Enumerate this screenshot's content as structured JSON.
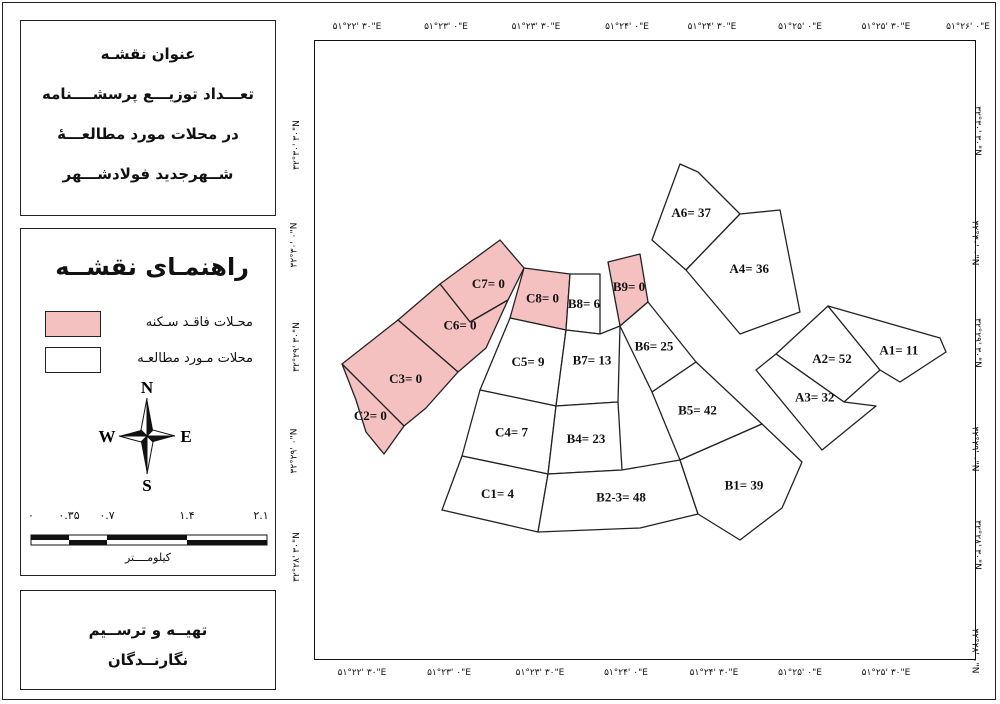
{
  "title_box": {
    "lines": [
      "عنوان نقشـه",
      "تعـــداد توزیـــع پرسشــــنامه",
      "در محلات مورد مطالعـــۀ",
      "شــهرجدید فولادشـــهر"
    ]
  },
  "legend": {
    "heading": "راهنمـای نقشــه",
    "items": [
      {
        "label": "محـلات فاقـد سـکنه",
        "color": "#f4c0c0"
      },
      {
        "label": "محلات مـورد مطالعـه",
        "color": "#ffffff"
      }
    ],
    "north_arrow": {
      "n": "N",
      "s": "S",
      "e": "E",
      "w": "W"
    },
    "scale_bar": {
      "labels": [
        "۰",
        "۰.۳۵",
        "۰.۷",
        "۱.۴",
        "۲.۱"
      ],
      "unit": "کیلومــــتر"
    }
  },
  "credit_box": {
    "lines": [
      "تهیــه و ترســیم",
      "نگارنــدگان"
    ]
  },
  "map": {
    "top_ticks": [
      "۵۱°۲۲' ۳۰\"E",
      "۵۱°۲۳' ۰\"E",
      "۵۱°۲۳' ۳۰\"E",
      "۵۱°۲۴' ۰\"E",
      "۵۱°۲۴' ۳۰\"E",
      "۵۱°۲۵' ۰\"E",
      "۵۱°۲۵' ۳۰\"E",
      "۵۱°۲۶' ۰\"E"
    ],
    "bottom_ticks": [
      "۵۱°۲۲' ۳۰\"E",
      "۵۱°۲۳' ۰\"E",
      "۵۱°۲۳' ۳۰\"E",
      "۵۱°۲۴' ۰\"E",
      "۵۱°۲۴' ۳۰\"E",
      "۵۱°۲۵' ۰\"E",
      "۵۱°۲۵' ۳۰\"E"
    ],
    "left_ticks": [
      "۳۲°۳۰' ۳۰\"N",
      "۳۲°۳۰' ۰\"N",
      "۳۲°۲۹' ۳۰\"N",
      "۳۲°۲۹' ۰\"N",
      "۳۲°۲۸' ۳۰\"N"
    ],
    "right_ticks": [
      "۳۲°۳۰' ۳۰\"N",
      "۳۲°۳۰' ۰\"N",
      "۳۲°۲۹' ۳۰\"N",
      "۳۲°۲۹' ۰\"N",
      "۳۲°۲۸' ۳۰\"N",
      "۳۲°۲۸' ۰\"N"
    ],
    "unoccupied_color": "#f4c0c0",
    "parcels": [
      {
        "id": "A1",
        "label": "A1= 11",
        "unoccupied": false
      },
      {
        "id": "A2",
        "label": "A2= 52",
        "unoccupied": false
      },
      {
        "id": "A3",
        "label": "A3= 32",
        "unoccupied": false
      },
      {
        "id": "A4",
        "label": "A4= 36",
        "unoccupied": false
      },
      {
        "id": "A6",
        "label": "A6= 37",
        "unoccupied": false
      },
      {
        "id": "B1",
        "label": "B1= 39",
        "unoccupied": false
      },
      {
        "id": "B2-3",
        "label": "B2-3= 48",
        "unoccupied": false
      },
      {
        "id": "B4",
        "label": "B4= 23",
        "unoccupied": false
      },
      {
        "id": "B5",
        "label": "B5= 42",
        "unoccupied": false
      },
      {
        "id": "B6",
        "label": "B6= 25",
        "unoccupied": false
      },
      {
        "id": "B7",
        "label": "B7= 13",
        "unoccupied": false
      },
      {
        "id": "B8",
        "label": "B8= 6",
        "unoccupied": false
      },
      {
        "id": "B9",
        "label": "B9= 0",
        "unoccupied": true
      },
      {
        "id": "C1",
        "label": "C1= 4",
        "unoccupied": false
      },
      {
        "id": "C2",
        "label": "C2= 0",
        "unoccupied": true
      },
      {
        "id": "C3",
        "label": "C3= 0",
        "unoccupied": true
      },
      {
        "id": "C4",
        "label": "C4= 7",
        "unoccupied": false
      },
      {
        "id": "C5",
        "label": "C5= 9",
        "unoccupied": false
      },
      {
        "id": "C6",
        "label": "C6= 0",
        "unoccupied": true
      },
      {
        "id": "C7",
        "label": "C7= 0",
        "unoccupied": true
      },
      {
        "id": "C8",
        "label": "C8= 0",
        "unoccupied": true
      }
    ]
  }
}
